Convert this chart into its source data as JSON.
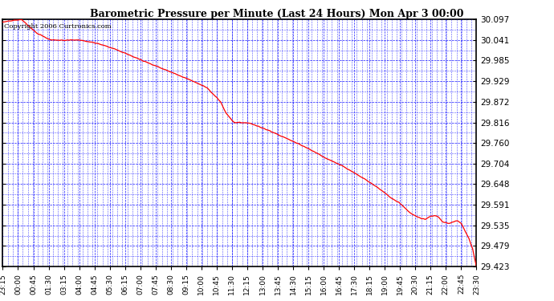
{
  "title": "Barometric Pressure per Minute (Last 24 Hours) Mon Apr 3 00:00",
  "copyright": "Copyright 2006 Curtronics.com",
  "line_color": "red",
  "bg_color": "white",
  "grid_color": "blue",
  "ylim": [
    29.423,
    30.097
  ],
  "yticks": [
    29.423,
    29.479,
    29.535,
    29.591,
    29.648,
    29.704,
    29.76,
    29.816,
    29.872,
    29.929,
    29.985,
    30.041,
    30.097
  ],
  "xtick_labels": [
    "23:15",
    "00:00",
    "00:45",
    "01:30",
    "03:15",
    "04:00",
    "04:45",
    "05:30",
    "06:15",
    "07:00",
    "07:45",
    "08:30",
    "09:15",
    "10:00",
    "10:45",
    "11:30",
    "12:15",
    "13:00",
    "13:45",
    "14:30",
    "15:15",
    "16:00",
    "16:45",
    "17:30",
    "18:15",
    "19:00",
    "19:45",
    "20:30",
    "21:15",
    "22:00",
    "22:45",
    "23:30"
  ],
  "ctrl_x": [
    0,
    5,
    10,
    18,
    25,
    32,
    37,
    42,
    50,
    60,
    70,
    80,
    90,
    100,
    108,
    115,
    118,
    122,
    130,
    140,
    150,
    160,
    170,
    180,
    190,
    198,
    205,
    210,
    215,
    220,
    223,
    226,
    228,
    230,
    232,
    235,
    238,
    240,
    242,
    244,
    246,
    248,
    249,
    250
  ],
  "ctrl_y": [
    30.09,
    30.094,
    30.097,
    30.06,
    30.042,
    30.04,
    30.042,
    30.04,
    30.032,
    30.015,
    29.993,
    29.972,
    29.951,
    29.93,
    29.91,
    29.872,
    29.84,
    29.816,
    29.815,
    29.795,
    29.772,
    29.748,
    29.72,
    29.695,
    29.665,
    29.638,
    29.61,
    29.593,
    29.569,
    29.555,
    29.552,
    29.56,
    29.562,
    29.558,
    29.545,
    29.54,
    29.545,
    29.548,
    29.54,
    29.52,
    29.5,
    29.47,
    29.445,
    29.423
  ]
}
